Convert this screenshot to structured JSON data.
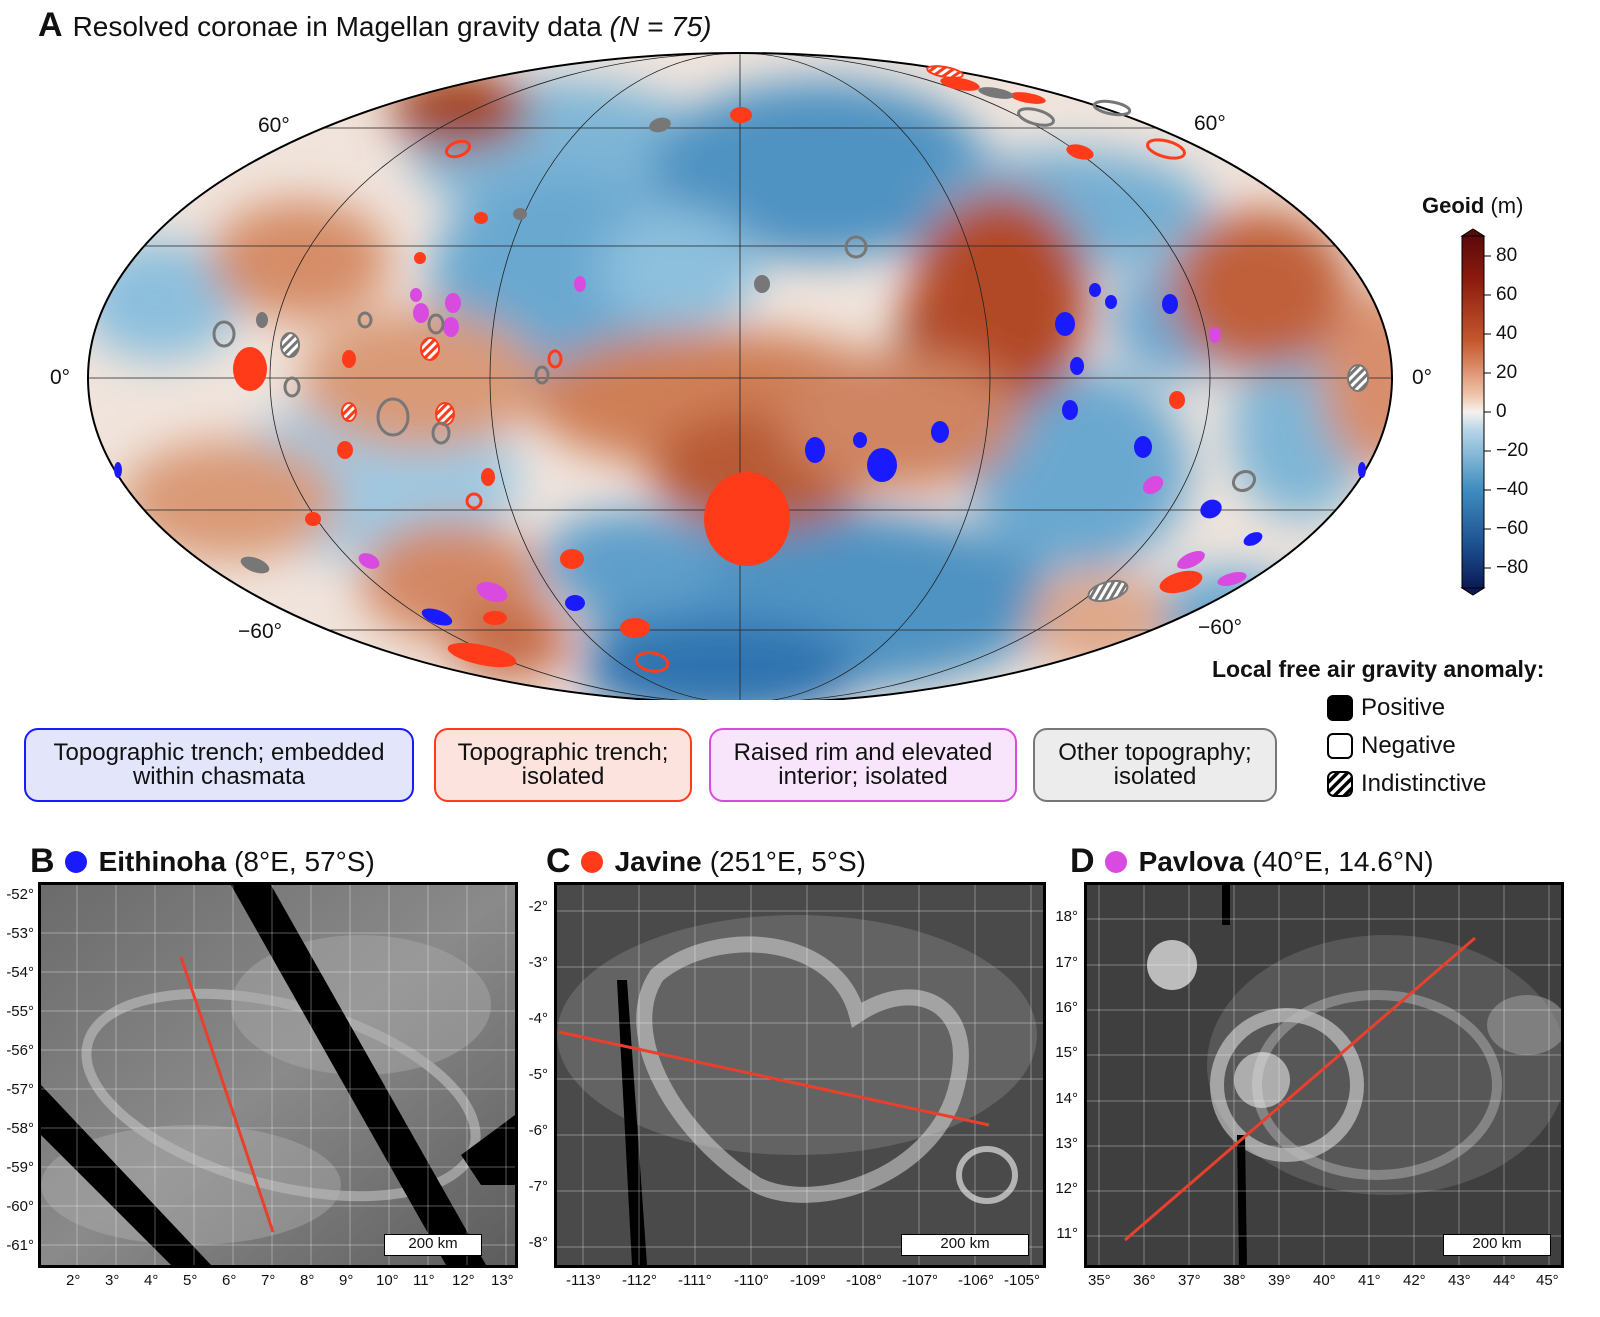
{
  "panel_a": {
    "letter": "A",
    "title_main": "Resolved coronae in Magellan gravity data",
    "title_n": "(N = 75)",
    "lat_labels": {
      "p60_left": "60°",
      "p60_right": "60°",
      "zero_left": "0°",
      "zero_right": "0°",
      "m60_left": "−60°",
      "m60_right": "−60°"
    },
    "colorbar": {
      "title": "Geoid",
      "unit": "(m)",
      "ticks": [
        "80",
        "60",
        "40",
        "20",
        "0",
        "−20",
        "−40",
        "−60",
        "−80"
      ],
      "range": [
        -90,
        90
      ]
    },
    "categories": [
      {
        "label": "Topographic trench; embedded within chasmata",
        "color": "#1a1aff",
        "fill": "#e3e6fb"
      },
      {
        "label": "Topographic trench; isolated",
        "color": "#ff3b1a",
        "fill": "#fde3de"
      },
      {
        "label": "Raised rim and elevated interior; isolated",
        "color": "#d94be0",
        "fill": "#f9e5fb"
      },
      {
        "label": "Other topography; isolated",
        "color": "#777777",
        "fill": "#ececec"
      }
    ],
    "gravity_legend": {
      "title": "Local free air gravity anomaly:",
      "positive": "Positive",
      "negative": "Negative",
      "indistinctive": "Indistinctive"
    }
  },
  "panel_b": {
    "letter": "B",
    "name": "Eithinoha",
    "coords": "(8°E, 57°S)",
    "dot_color": "#1a1aff",
    "y_ticks": [
      "-52°",
      "-53°",
      "-54°",
      "-55°",
      "-56°",
      "-57°",
      "-58°",
      "-59°",
      "-60°",
      "-61°"
    ],
    "x_ticks": [
      "2°",
      "3°",
      "4°",
      "5°",
      "6°",
      "7°",
      "8°",
      "9°",
      "10°",
      "11°",
      "12°",
      "13°"
    ],
    "scale": "200 km"
  },
  "panel_c": {
    "letter": "C",
    "name": "Javine",
    "coords": "(251°E, 5°S)",
    "dot_color": "#ff3b1a",
    "y_ticks": [
      "-2°",
      "-3°",
      "-4°",
      "-5°",
      "-6°",
      "-7°",
      "-8°"
    ],
    "x_ticks": [
      "-113°",
      "-112°",
      "-111°",
      "-110°",
      "-109°",
      "-108°",
      "-107°",
      "-106°",
      "-105°"
    ],
    "scale": "200 km"
  },
  "panel_d": {
    "letter": "D",
    "name": "Pavlova",
    "coords": "(40°E, 14.6°N)",
    "dot_color": "#d94be0",
    "y_ticks": [
      "18°",
      "17°",
      "16°",
      "15°",
      "14°",
      "13°",
      "12°",
      "11°"
    ],
    "x_ticks": [
      "35°",
      "36°",
      "37°",
      "38°",
      "39°",
      "40°",
      "41°",
      "42°",
      "43°",
      "44°",
      "45°"
    ],
    "scale": "200 km"
  },
  "colors": {
    "profile_line": "#e8402c",
    "frame": "#000000"
  }
}
